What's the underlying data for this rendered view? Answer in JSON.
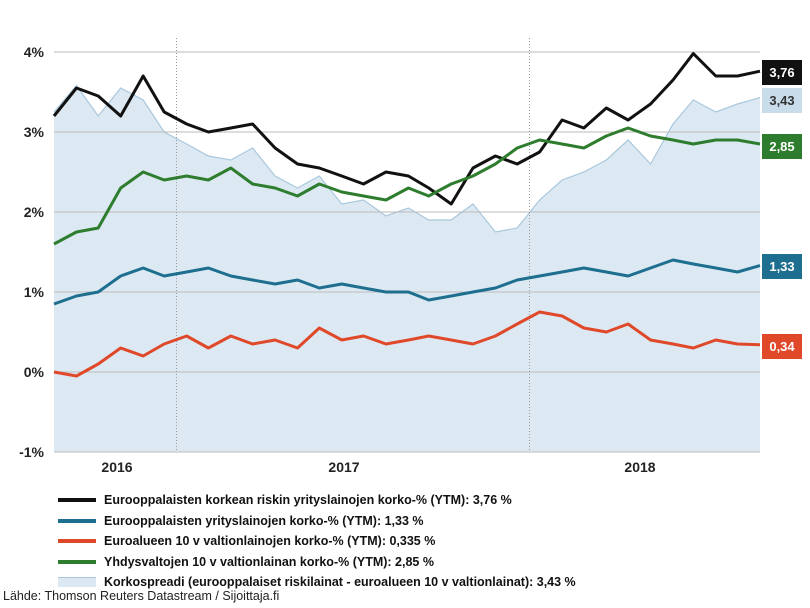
{
  "chart_data": {
    "type": "line",
    "y_ticks": [
      "4%",
      "3%",
      "2%",
      "1%",
      "0%",
      "-1%"
    ],
    "y_tick_values": [
      4,
      3,
      2,
      1,
      0,
      -1
    ],
    "ylim": [
      -1,
      4
    ],
    "x_tick_labels": [
      "2016",
      "2017",
      "2018"
    ],
    "x_range": [
      "2015-10-15",
      "2018-06-15"
    ],
    "year_dividers": [
      "2016-04-01",
      "2017-08-01"
    ],
    "grid": true,
    "legend_position": "bottom",
    "series": [
      {
        "key": "spread",
        "kind": "area",
        "name": "Korkospreadi (eurooppalaiset riskilainat - euroalueen 10 v valtionlainat): 3,43 %",
        "color": "#a9c8dd",
        "end_value": "3,43",
        "x": [
          "2015-10-15",
          "2015-11-15",
          "2015-12-15",
          "2016-01-15",
          "2016-02-15",
          "2016-03-15",
          "2016-04-15",
          "2016-05-15",
          "2016-06-15",
          "2016-07-15",
          "2016-08-15",
          "2016-09-15",
          "2016-10-15",
          "2016-11-15",
          "2016-12-15",
          "2017-01-15",
          "2017-02-15",
          "2017-03-15",
          "2017-04-15",
          "2017-05-15",
          "2017-06-15",
          "2017-07-15",
          "2017-08-15",
          "2017-09-15",
          "2017-10-15",
          "2017-11-15",
          "2017-12-15",
          "2018-01-15",
          "2018-02-15",
          "2018-03-15",
          "2018-04-15",
          "2018-05-15",
          "2018-06-15"
        ],
        "values": [
          3.25,
          3.58,
          3.2,
          3.55,
          3.4,
          3.0,
          2.85,
          2.7,
          2.65,
          2.8,
          2.45,
          2.3,
          2.45,
          2.1,
          2.15,
          1.95,
          2.05,
          1.9,
          1.9,
          2.1,
          1.75,
          1.8,
          2.15,
          2.4,
          2.5,
          2.65,
          2.9,
          2.6,
          3.1,
          3.4,
          3.25,
          3.35,
          3.43
        ]
      },
      {
        "key": "high_yield",
        "kind": "line",
        "name": "Eurooppalaisten korkean riskin yrityslainojen korko-% (YTM): 3,76 %",
        "color": "#111111",
        "end_value": "3,76",
        "x": [
          "2015-10-15",
          "2015-11-15",
          "2015-12-15",
          "2016-01-15",
          "2016-02-15",
          "2016-03-15",
          "2016-04-15",
          "2016-05-15",
          "2016-06-15",
          "2016-07-15",
          "2016-08-15",
          "2016-09-15",
          "2016-10-15",
          "2016-11-15",
          "2016-12-15",
          "2017-01-15",
          "2017-02-15",
          "2017-03-15",
          "2017-04-15",
          "2017-05-15",
          "2017-06-15",
          "2017-07-15",
          "2017-08-15",
          "2017-09-15",
          "2017-10-15",
          "2017-11-15",
          "2017-12-15",
          "2018-01-15",
          "2018-02-15",
          "2018-03-15",
          "2018-04-15",
          "2018-05-15",
          "2018-06-15"
        ],
        "values": [
          3.2,
          3.55,
          3.45,
          3.2,
          3.7,
          3.25,
          3.1,
          3.0,
          3.05,
          3.1,
          2.8,
          2.6,
          2.55,
          2.45,
          2.35,
          2.5,
          2.45,
          2.3,
          2.1,
          2.55,
          2.7,
          2.6,
          2.75,
          3.15,
          3.05,
          3.3,
          3.15,
          3.35,
          3.65,
          3.98,
          3.7,
          3.7,
          3.76
        ]
      },
      {
        "key": "us10y",
        "kind": "line",
        "name": "Yhdysvaltojen 10 v valtionlainan korko-% (YTM): 2,85 %",
        "color": "#2e7d2e",
        "end_value": "2,85",
        "x": [
          "2015-10-15",
          "2015-11-15",
          "2015-12-15",
          "2016-01-15",
          "2016-02-15",
          "2016-03-15",
          "2016-04-15",
          "2016-05-15",
          "2016-06-15",
          "2016-07-15",
          "2016-08-15",
          "2016-09-15",
          "2016-10-15",
          "2016-11-15",
          "2016-12-15",
          "2017-01-15",
          "2017-02-15",
          "2017-03-15",
          "2017-04-15",
          "2017-05-15",
          "2017-06-15",
          "2017-07-15",
          "2017-08-15",
          "2017-09-15",
          "2017-10-15",
          "2017-11-15",
          "2017-12-15",
          "2018-01-15",
          "2018-02-15",
          "2018-03-15",
          "2018-04-15",
          "2018-05-15",
          "2018-06-15"
        ],
        "values": [
          1.6,
          1.75,
          1.8,
          2.3,
          2.5,
          2.4,
          2.45,
          2.4,
          2.55,
          2.35,
          2.3,
          2.2,
          2.35,
          2.25,
          2.2,
          2.15,
          2.3,
          2.2,
          2.35,
          2.45,
          2.6,
          2.8,
          2.9,
          2.85,
          2.8,
          2.95,
          3.05,
          2.95,
          2.9,
          2.85,
          2.9,
          2.9,
          2.85
        ]
      },
      {
        "key": "ig",
        "kind": "line",
        "name": "Eurooppalaisten yrityslainojen korko-% (YTM): 1,33 %",
        "color": "#1e6f8f",
        "end_value": "1,33",
        "x": [
          "2015-10-15",
          "2015-11-15",
          "2015-12-15",
          "2016-01-15",
          "2016-02-15",
          "2016-03-15",
          "2016-04-15",
          "2016-05-15",
          "2016-06-15",
          "2016-07-15",
          "2016-08-15",
          "2016-09-15",
          "2016-10-15",
          "2016-11-15",
          "2016-12-15",
          "2017-01-15",
          "2017-02-15",
          "2017-03-15",
          "2017-04-15",
          "2017-05-15",
          "2017-06-15",
          "2017-07-15",
          "2017-08-15",
          "2017-09-15",
          "2017-10-15",
          "2017-11-15",
          "2017-12-15",
          "2018-01-15",
          "2018-02-15",
          "2018-03-15",
          "2018-04-15",
          "2018-05-15",
          "2018-06-15"
        ],
        "values": [
          0.85,
          0.95,
          1.0,
          1.2,
          1.3,
          1.2,
          1.25,
          1.3,
          1.2,
          1.15,
          1.1,
          1.15,
          1.05,
          1.1,
          1.05,
          1.0,
          1.0,
          0.9,
          0.95,
          1.0,
          1.05,
          1.15,
          1.2,
          1.25,
          1.3,
          1.25,
          1.2,
          1.3,
          1.4,
          1.35,
          1.3,
          1.25,
          1.33
        ]
      },
      {
        "key": "euro10y",
        "kind": "line",
        "name": "Euroalueen 10 v valtionlainojen korko-% (YTM): 0,335 %",
        "color": "#e0482a",
        "end_value": "0,34",
        "x": [
          "2015-10-15",
          "2015-11-15",
          "2015-12-15",
          "2016-01-15",
          "2016-02-15",
          "2016-03-15",
          "2016-04-15",
          "2016-05-15",
          "2016-06-15",
          "2016-07-15",
          "2016-08-15",
          "2016-09-15",
          "2016-10-15",
          "2016-11-15",
          "2016-12-15",
          "2017-01-15",
          "2017-02-15",
          "2017-03-15",
          "2017-04-15",
          "2017-05-15",
          "2017-06-15",
          "2017-07-15",
          "2017-08-15",
          "2017-09-15",
          "2017-10-15",
          "2017-11-15",
          "2017-12-15",
          "2018-01-15",
          "2018-02-15",
          "2018-03-15",
          "2018-04-15",
          "2018-05-15",
          "2018-06-15"
        ],
        "values": [
          0.0,
          -0.05,
          0.1,
          0.3,
          0.2,
          0.35,
          0.45,
          0.3,
          0.45,
          0.35,
          0.4,
          0.3,
          0.55,
          0.4,
          0.45,
          0.35,
          0.4,
          0.45,
          0.4,
          0.35,
          0.45,
          0.6,
          0.75,
          0.7,
          0.55,
          0.5,
          0.6,
          0.4,
          0.35,
          0.3,
          0.4,
          0.35,
          0.34
        ]
      }
    ]
  },
  "source": "Lähde: Thomson Reuters Datastream / Sijoittaja.fi"
}
